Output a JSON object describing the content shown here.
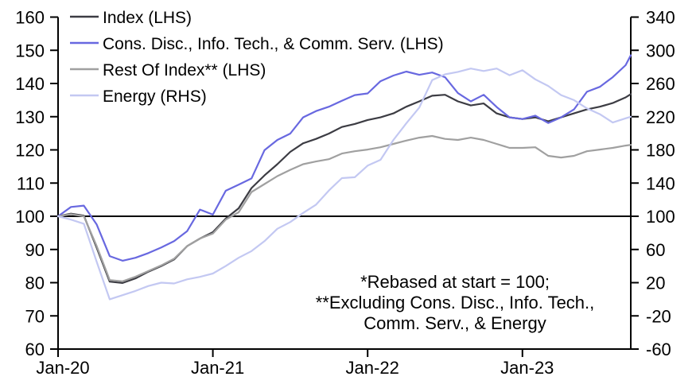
{
  "chart_data": {
    "type": "line",
    "title": "",
    "grid": false,
    "legend_position": "top-left",
    "baseline_value": 100,
    "x_axis": {
      "tick_labels": [
        "Jan-20",
        "Jan-21",
        "Jan-22",
        "Jan-23"
      ],
      "tick_months": [
        0,
        12,
        24,
        36
      ],
      "range_months": [
        0,
        44.4
      ]
    },
    "lhs_axis": {
      "min": 60,
      "max": 160,
      "ticks": [
        160,
        150,
        140,
        130,
        120,
        110,
        100,
        90,
        80,
        70,
        60
      ]
    },
    "rhs_axis": {
      "min": -60,
      "max": 340,
      "ticks": [
        340,
        300,
        260,
        220,
        180,
        140,
        100,
        60,
        20,
        -20,
        -60
      ]
    },
    "x_months": [
      0,
      1,
      2,
      3,
      4,
      5,
      6,
      7,
      8,
      9,
      10,
      11,
      12,
      13,
      14,
      15,
      16,
      17,
      18,
      19,
      20,
      21,
      22,
      23,
      24,
      25,
      26,
      27,
      28,
      29,
      30,
      31,
      32,
      33,
      34,
      35,
      36,
      37,
      38,
      39,
      40,
      41,
      42,
      43,
      44,
      44.4
    ],
    "series": [
      {
        "key": "index",
        "name": "Index (LHS)",
        "axis": "LHS",
        "color": "#3C3C43",
        "values": [
          100,
          100.8,
          100.2,
          90.5,
          80.3,
          79.9,
          81.3,
          83.3,
          85,
          87,
          91,
          93.3,
          95.2,
          99.3,
          102.4,
          108.5,
          112.3,
          115.7,
          119.4,
          122,
          123.3,
          124.9,
          126.9,
          127.8,
          129,
          129.8,
          131,
          133,
          134.6,
          136.3,
          136.6,
          134.6,
          133.4,
          134,
          131,
          129.8,
          129.3,
          129.8,
          128.6,
          129.8,
          131,
          132.2,
          133,
          134.1,
          135.8,
          136.8
        ]
      },
      {
        "key": "cons-disc-info-tech-comm-serv",
        "name": "Cons. Disc., Info. Tech., & Comm. Serv. (LHS)",
        "axis": "LHS",
        "color": "#6868E0",
        "values": [
          100,
          102.8,
          103.2,
          97.5,
          88,
          86.6,
          87.5,
          88.9,
          90.6,
          92.5,
          95.5,
          102,
          100.5,
          107.7,
          109.5,
          111.4,
          119.9,
          123,
          124.9,
          129.8,
          131.7,
          133,
          134.8,
          136.5,
          137,
          140.7,
          142.4,
          143.6,
          142.6,
          143.3,
          141.9,
          137.1,
          134.6,
          136.6,
          132.9,
          129.8,
          129.3,
          130.3,
          128.1,
          129.8,
          132.2,
          137.5,
          139,
          141.9,
          145.5,
          148.5
        ]
      },
      {
        "key": "rest-of-index",
        "name": "Rest Of Index** (LHS)",
        "axis": "LHS",
        "color": "#A0A0A0",
        "values": [
          100,
          100.6,
          100,
          91,
          80.8,
          80.4,
          81.8,
          83.5,
          85.2,
          87.2,
          91,
          93.3,
          94.8,
          99,
          101.2,
          107.3,
          109.7,
          112.1,
          114,
          115.7,
          116.5,
          117.2,
          118.9,
          119.6,
          120.1,
          120.8,
          121.8,
          122.8,
          123.7,
          124.2,
          123.3,
          123,
          123.7,
          123,
          121.8,
          120.6,
          120.6,
          120.8,
          118.2,
          117.7,
          118.2,
          119.6,
          120.1,
          120.6,
          121.3,
          121.5
        ]
      },
      {
        "key": "energy",
        "name": "Energy (RHS)",
        "axis": "RHS",
        "color": "#C3C8F2",
        "values": [
          100,
          96,
          91,
          45,
          0,
          5,
          10,
          16,
          20,
          19,
          24,
          27,
          31,
          40,
          50,
          58,
          70,
          85,
          93,
          104,
          114,
          131,
          146,
          147,
          161,
          168,
          192,
          212,
          231,
          264,
          271,
          274,
          278,
          275,
          278,
          270,
          276,
          265,
          257,
          246,
          240,
          230,
          223,
          213,
          218,
          220
        ]
      }
    ],
    "annotation_lines": [
      "*Rebased at start = 100;",
      "**Excluding Cons. Disc., Info. Tech.,",
      "Comm. Serv., & Energy"
    ]
  }
}
